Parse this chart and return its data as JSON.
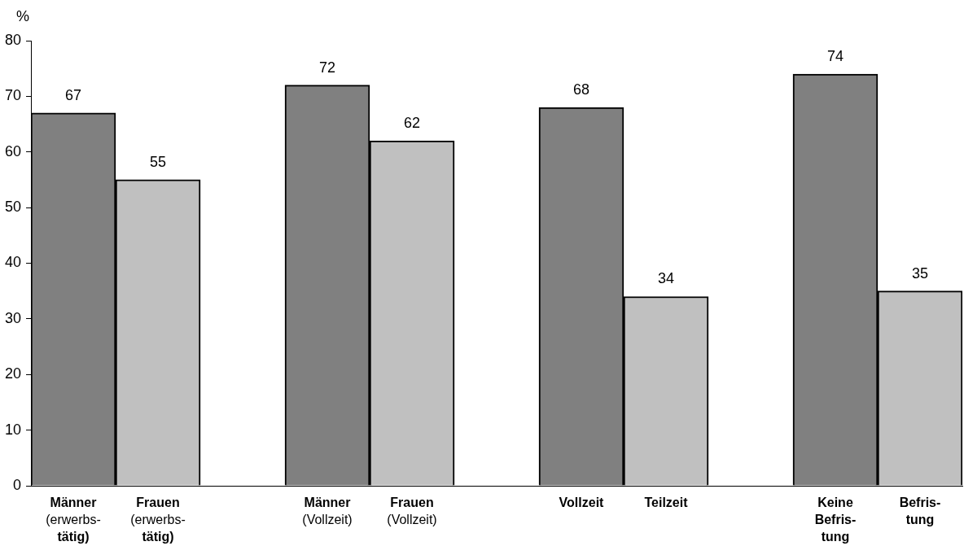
{
  "chart_data": {
    "type": "bar",
    "ylabel": "%",
    "categories": [
      "Männer\n(erwerbs-\ntätig)",
      "Frauen\n(erwerbs-\ntätig)",
      null,
      "Männer\n(Vollzeit)",
      "Frauen\n(Vollzeit)",
      null,
      "Vollzeit",
      "Teilzeit",
      null,
      "Keine\nBefris-\ntung",
      "Befris-\ntung"
    ],
    "values": [
      67,
      55,
      null,
      72,
      62,
      null,
      68,
      34,
      null,
      74,
      35
    ],
    "colors": [
      "#808080",
      "#c0c0c0",
      "#808080",
      "#808080",
      "#c0c0c0",
      "#808080",
      "#808080",
      "#c0c0c0",
      "#808080",
      "#808080",
      "#c0c0c0"
    ],
    "ylim": [
      0,
      80
    ],
    "yticks": [
      0,
      10,
      20,
      30,
      40,
      50,
      60,
      70,
      80
    ],
    "grid": false,
    "legend": false,
    "data_labels": true
  }
}
